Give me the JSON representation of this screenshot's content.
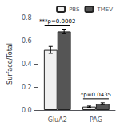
{
  "chart_data": {
    "type": "bar",
    "categories": [
      "GluA2",
      "PAG"
    ],
    "series": [
      {
        "name": "PBS",
        "color": "#f0f0f0",
        "values": [
          0.52,
          0.03
        ],
        "errors": [
          0.03,
          0.005
        ]
      },
      {
        "name": "TMEV",
        "color": "#555555",
        "values": [
          0.68,
          0.055
        ],
        "errors": [
          0.02,
          0.008
        ]
      }
    ],
    "ylabel": "Surface/Total",
    "ylim": [
      0.0,
      0.8
    ],
    "yticks": [
      {
        "value": 0.0,
        "label": "0.0"
      },
      0.2,
      0.4,
      0.6,
      0.8
    ],
    "annotations": [
      {
        "category": "GluA2",
        "text": "***p=0.0002"
      },
      {
        "category": "PAG",
        "text": "*p=0.0435"
      }
    ],
    "legend": "upper right",
    "grid": false
  }
}
